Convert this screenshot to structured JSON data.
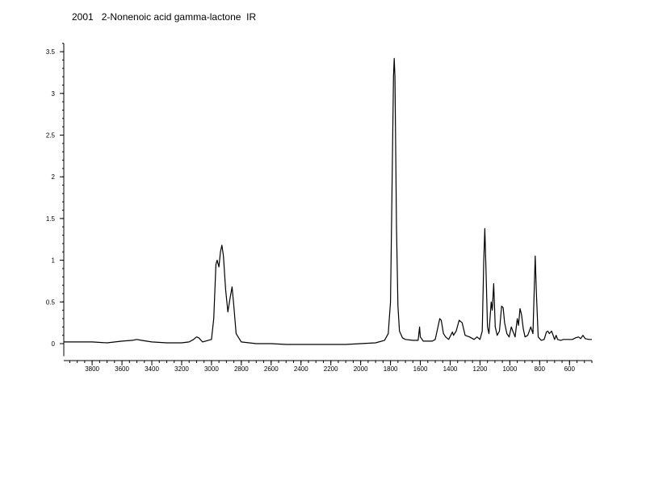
{
  "chart_data": {
    "type": "line",
    "title": "2001   2-Nonenoic acid gamma-lactone  IR",
    "xlabel": "",
    "ylabel": "",
    "x_reversed": true,
    "xlim": [
      3990,
      450
    ],
    "ylim": [
      -0.15,
      3.6
    ],
    "grid": false,
    "y_ticks": [
      {
        "v": 0,
        "label": "0"
      },
      {
        "v": 0.5,
        "label": "0.5"
      },
      {
        "v": 1,
        "label": "1"
      },
      {
        "v": 1.5,
        "label": "1.5"
      },
      {
        "v": 2,
        "label": "2"
      },
      {
        "v": 2.5,
        "label": "2.5"
      },
      {
        "v": 3,
        "label": "3"
      },
      {
        "v": 3.5,
        "label": "3.5"
      }
    ],
    "x_ticks": [
      {
        "v": 3800,
        "label": "3800"
      },
      {
        "v": 3600,
        "label": "3600"
      },
      {
        "v": 3400,
        "label": "3400"
      },
      {
        "v": 3200,
        "label": "3200"
      },
      {
        "v": 3000,
        "label": "3000"
      },
      {
        "v": 2800,
        "label": "2800"
      },
      {
        "v": 2600,
        "label": "2600"
      },
      {
        "v": 2400,
        "label": "2400"
      },
      {
        "v": 2200,
        "label": "2200"
      },
      {
        "v": 2000,
        "label": "2000"
      },
      {
        "v": 1800,
        "label": "1800"
      },
      {
        "v": 1600,
        "label": "1600"
      },
      {
        "v": 1400,
        "label": "1400"
      },
      {
        "v": 1200,
        "label": "1200"
      },
      {
        "v": 1000,
        "label": "1000"
      },
      {
        "v": 800,
        "label": "800"
      },
      {
        "v": 600,
        "label": "600"
      }
    ],
    "series": [
      {
        "color": "#000000",
        "points": [
          [
            3990,
            0.02
          ],
          [
            3800,
            0.02
          ],
          [
            3700,
            0.01
          ],
          [
            3600,
            0.03
          ],
          [
            3530,
            0.04
          ],
          [
            3500,
            0.05
          ],
          [
            3470,
            0.04
          ],
          [
            3400,
            0.02
          ],
          [
            3300,
            0.01
          ],
          [
            3200,
            0.01
          ],
          [
            3150,
            0.02
          ],
          [
            3120,
            0.05
          ],
          [
            3100,
            0.08
          ],
          [
            3085,
            0.07
          ],
          [
            3060,
            0.02
          ],
          [
            3000,
            0.05
          ],
          [
            2985,
            0.3
          ],
          [
            2970,
            0.95
          ],
          [
            2962,
            1.0
          ],
          [
            2950,
            0.92
          ],
          [
            2940,
            1.1
          ],
          [
            2930,
            1.18
          ],
          [
            2920,
            1.05
          ],
          [
            2905,
            0.65
          ],
          [
            2890,
            0.38
          ],
          [
            2875,
            0.55
          ],
          [
            2862,
            0.68
          ],
          [
            2850,
            0.45
          ],
          [
            2835,
            0.12
          ],
          [
            2800,
            0.02
          ],
          [
            2700,
            0.0
          ],
          [
            2600,
            0.0
          ],
          [
            2500,
            -0.01
          ],
          [
            2400,
            -0.01
          ],
          [
            2300,
            -0.01
          ],
          [
            2200,
            -0.01
          ],
          [
            2100,
            -0.01
          ],
          [
            2000,
            0.0
          ],
          [
            1900,
            0.01
          ],
          [
            1840,
            0.04
          ],
          [
            1815,
            0.12
          ],
          [
            1800,
            0.5
          ],
          [
            1790,
            1.8
          ],
          [
            1780,
            3.2
          ],
          [
            1775,
            3.42
          ],
          [
            1770,
            3.2
          ],
          [
            1760,
            1.4
          ],
          [
            1750,
            0.45
          ],
          [
            1740,
            0.15
          ],
          [
            1720,
            0.07
          ],
          [
            1700,
            0.05
          ],
          [
            1650,
            0.04
          ],
          [
            1615,
            0.04
          ],
          [
            1605,
            0.2
          ],
          [
            1600,
            0.08
          ],
          [
            1580,
            0.03
          ],
          [
            1520,
            0.03
          ],
          [
            1500,
            0.05
          ],
          [
            1470,
            0.3
          ],
          [
            1460,
            0.28
          ],
          [
            1445,
            0.12
          ],
          [
            1430,
            0.08
          ],
          [
            1410,
            0.05
          ],
          [
            1385,
            0.14
          ],
          [
            1378,
            0.1
          ],
          [
            1360,
            0.15
          ],
          [
            1340,
            0.28
          ],
          [
            1320,
            0.25
          ],
          [
            1300,
            0.1
          ],
          [
            1270,
            0.08
          ],
          [
            1240,
            0.05
          ],
          [
            1220,
            0.08
          ],
          [
            1200,
            0.05
          ],
          [
            1185,
            0.15
          ],
          [
            1175,
            1.0
          ],
          [
            1168,
            1.38
          ],
          [
            1160,
            0.9
          ],
          [
            1150,
            0.2
          ],
          [
            1140,
            0.12
          ],
          [
            1125,
            0.5
          ],
          [
            1118,
            0.4
          ],
          [
            1108,
            0.72
          ],
          [
            1098,
            0.2
          ],
          [
            1085,
            0.1
          ],
          [
            1070,
            0.15
          ],
          [
            1055,
            0.45
          ],
          [
            1045,
            0.43
          ],
          [
            1035,
            0.25
          ],
          [
            1020,
            0.12
          ],
          [
            1005,
            0.08
          ],
          [
            990,
            0.2
          ],
          [
            980,
            0.15
          ],
          [
            965,
            0.08
          ],
          [
            950,
            0.3
          ],
          [
            942,
            0.22
          ],
          [
            932,
            0.42
          ],
          [
            922,
            0.35
          ],
          [
            910,
            0.18
          ],
          [
            898,
            0.08
          ],
          [
            880,
            0.1
          ],
          [
            860,
            0.2
          ],
          [
            845,
            0.12
          ],
          [
            830,
            1.05
          ],
          [
            822,
            0.6
          ],
          [
            810,
            0.08
          ],
          [
            790,
            0.04
          ],
          [
            770,
            0.05
          ],
          [
            755,
            0.14
          ],
          [
            745,
            0.15
          ],
          [
            735,
            0.12
          ],
          [
            720,
            0.15
          ],
          [
            710,
            0.1
          ],
          [
            700,
            0.05
          ],
          [
            690,
            0.1
          ],
          [
            680,
            0.05
          ],
          [
            660,
            0.04
          ],
          [
            640,
            0.05
          ],
          [
            620,
            0.05
          ],
          [
            600,
            0.05
          ],
          [
            580,
            0.05
          ],
          [
            560,
            0.07
          ],
          [
            540,
            0.08
          ],
          [
            525,
            0.06
          ],
          [
            510,
            0.1
          ],
          [
            495,
            0.06
          ],
          [
            470,
            0.05
          ],
          [
            450,
            0.05
          ]
        ]
      }
    ]
  }
}
